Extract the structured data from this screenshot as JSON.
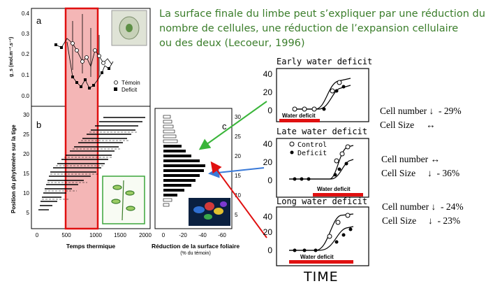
{
  "caption": {
    "line1": "La surface finale du limbe peut s’expliquer par une réduction du",
    "line2": "nombre de cellules, une réduction de l’expansion cellulaire",
    "line3": "ou des deux (Lecoeur, 1996)"
  },
  "left_figure": {
    "panel_a_label": "a",
    "panel_b_label": "b",
    "panel_c_label": "c",
    "y_label_a": "g_s (mol.m⁻².s⁻¹)",
    "y_ticks_a": [
      "0.4",
      "0.3",
      "0.2",
      "0.1",
      "0.0"
    ],
    "legend_temoin": "Témoin",
    "legend_deficit": "Deficit",
    "y_label_b": "Position du phytomère sur la tige",
    "y_ticks_b": [
      "30",
      "25",
      "20",
      "15",
      "10",
      "5"
    ],
    "x_ticks_b": [
      "0",
      "500",
      "1000",
      "1500",
      "2000"
    ],
    "x_label_b": "Temps thermique",
    "x_ticks_c": [
      "0",
      "-20",
      "-40",
      "-60"
    ],
    "x_label_c": "Réduction de la surface foliaire",
    "x_sublabel_c": "(% du témoin)",
    "y_ticks_c": [
      "30",
      "25",
      "20",
      "15",
      "10",
      "5"
    ]
  },
  "panels": [
    {
      "title": "Early water deficit",
      "bar_label": "Water deficit",
      "y_ticks": [
        "40",
        "20",
        "0"
      ]
    },
    {
      "title": "Late water deficit",
      "bar_label": "Water deficit",
      "y_ticks": [
        "40",
        "20",
        "0"
      ],
      "legend": [
        "Control",
        "Deficit"
      ]
    },
    {
      "title": "Long water deficit",
      "bar_label": "Water deficit",
      "y_ticks": [
        "40",
        "20",
        "0"
      ]
    }
  ],
  "stats": [
    {
      "row1_label": "Cell number",
      "row1_arrow": "↓",
      "row1_value": "- 29%",
      "row2_label": "Cell Size",
      "row2_arrow": "↔",
      "row2_value": ""
    },
    {
      "row1_label": "Cell number",
      "row1_arrow": "↔",
      "row1_value": "",
      "row2_label": "Cell Size",
      "row2_arrow": "↓",
      "row2_value": "- 36%"
    },
    {
      "row1_label": "Cell number",
      "row1_arrow": "↓",
      "row1_value": "- 24%",
      "row2_label": "Cell Size",
      "row2_arrow": "↓",
      "row2_value": "- 23%"
    }
  ],
  "x_axis_label": "TIME"
}
